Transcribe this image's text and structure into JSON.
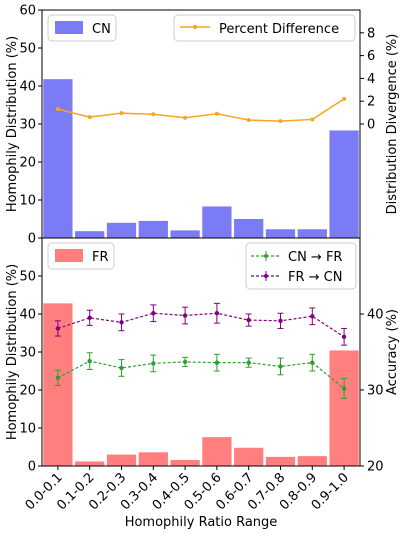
{
  "chart_data": [
    {
      "type": "bar",
      "panel": "top",
      "categories": [
        "0.0-0.1",
        "0.1-0.2",
        "0.2-0.3",
        "0.3-0.4",
        "0.4-0.5",
        "0.5-0.6",
        "0.6-0.7",
        "0.7-0.8",
        "0.8-0.9",
        "0.9-1.0"
      ],
      "series": [
        {
          "name": "CN",
          "axis": "left",
          "color": "#7b7bf5",
          "values": [
            41.8,
            1.8,
            4.0,
            4.5,
            2.0,
            8.3,
            5.0,
            2.3,
            2.3,
            28.3
          ]
        },
        {
          "name": "Percent Difference",
          "axis": "right",
          "type": "line",
          "color": "#f5a623",
          "values": [
            1.3,
            0.6,
            0.95,
            0.85,
            0.55,
            0.9,
            0.35,
            0.25,
            0.4,
            2.2
          ]
        }
      ],
      "ylabel": "Homophily Distribution (%)",
      "ylabel_right": "Distribution Divergence (%)",
      "ylim": [
        0,
        60
      ],
      "yticks": [
        "0",
        "10",
        "20",
        "30",
        "40",
        "50",
        "60"
      ],
      "y2lim": [
        -10,
        10
      ],
      "y2ticks": [
        "0",
        "2",
        "4",
        "6",
        "8"
      ],
      "legend": [
        "top-left",
        "top-right"
      ]
    },
    {
      "type": "bar",
      "panel": "bottom",
      "categories": [
        "0.0-0.1",
        "0.1-0.2",
        "0.2-0.3",
        "0.3-0.4",
        "0.4-0.5",
        "0.5-0.6",
        "0.6-0.7",
        "0.7-0.8",
        "0.8-0.9",
        "0.9-1.0"
      ],
      "series": [
        {
          "name": "FR",
          "axis": "left",
          "color": "#ff7f7f",
          "values": [
            42.8,
            1.2,
            3.0,
            3.6,
            1.6,
            7.6,
            4.8,
            2.4,
            2.6,
            30.4
          ]
        },
        {
          "name": "CN → FR",
          "axis": "right",
          "type": "line",
          "color": "#2ca02c",
          "values": [
            31.6,
            33.8,
            32.9,
            33.5,
            33.7,
            33.6,
            33.6,
            33.1,
            33.6,
            30.2
          ],
          "errors": [
            1.0,
            1.1,
            1.1,
            1.1,
            0.6,
            1.1,
            0.6,
            1.1,
            1.1,
            1.3
          ]
        },
        {
          "name": "FR → CN",
          "axis": "right",
          "type": "line",
          "color": "#800080",
          "values": [
            38.1,
            39.5,
            38.9,
            40.1,
            39.8,
            40.1,
            39.2,
            39.1,
            39.7,
            37.0
          ],
          "errors": [
            1.0,
            1.0,
            1.1,
            1.1,
            1.1,
            1.3,
            0.8,
            1.0,
            1.1,
            1.1
          ]
        }
      ],
      "xlabel": "Homophily Ratio Range",
      "ylabel": "Homophily Distribution (%)",
      "ylabel_right": "Accuracy (%)",
      "ylim": [
        0,
        60
      ],
      "yticks": [
        "0",
        "10",
        "20",
        "30",
        "40",
        "50"
      ],
      "y2lim": [
        20,
        50
      ],
      "y2ticks": [
        "20",
        "30",
        "40"
      ],
      "legend": [
        "top-left",
        "top-right"
      ]
    }
  ]
}
